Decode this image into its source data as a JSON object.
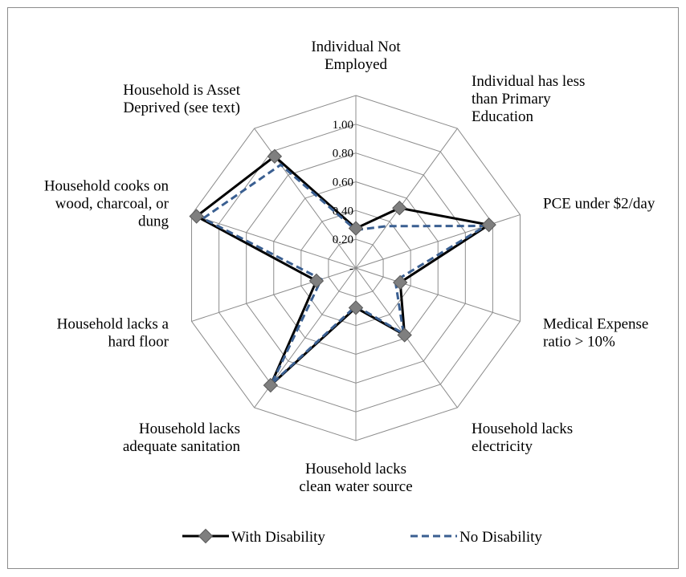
{
  "chart_data": {
    "type": "radar",
    "axes": [
      [
        "Individual Not",
        "Employed"
      ],
      [
        "Individual has less",
        "than Primary",
        "Education"
      ],
      [
        "PCE under $2/day"
      ],
      [
        "Medical Expense",
        "ratio > 10%"
      ],
      [
        "Household lacks",
        "electricity"
      ],
      [
        "Household lacks",
        "clean water source"
      ],
      [
        "Household lacks",
        "adequate sanitation"
      ],
      [
        "Household lacks a",
        "hard floor"
      ],
      [
        "Household cooks on",
        "wood, charcoal, or",
        "dung"
      ],
      [
        "Household is Asset",
        "Deprived (see text)"
      ]
    ],
    "tick_labels": [
      "-",
      "0.20",
      "0.40",
      "0.60",
      "0.80",
      "1.00"
    ],
    "rlim": [
      0,
      1
    ],
    "series": [
      {
        "name": "With Disability",
        "color": "#000000",
        "line_style": "solid",
        "marker": "diamond",
        "marker_color": "#7f7f7f",
        "values": [
          0.23,
          0.43,
          0.81,
          0.27,
          0.48,
          0.23,
          0.84,
          0.24,
          0.97,
          0.8
        ]
      },
      {
        "name": "No Disability",
        "color": "#3a5f91",
        "line_style": "dashed",
        "values": [
          0.22,
          0.3,
          0.79,
          0.24,
          0.47,
          0.22,
          0.83,
          0.21,
          0.93,
          0.74
        ]
      }
    ],
    "legend_position": "bottom",
    "grid": true
  }
}
